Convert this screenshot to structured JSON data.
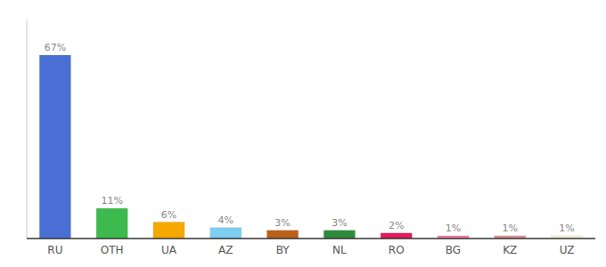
{
  "chart_data": {
    "type": "bar",
    "categories": [
      "RU",
      "OTH",
      "UA",
      "AZ",
      "BY",
      "NL",
      "RO",
      "BG",
      "KZ",
      "UZ"
    ],
    "values": [
      67,
      11,
      6,
      4,
      3,
      3,
      2,
      1,
      1,
      1
    ],
    "value_labels": [
      "67%",
      "11%",
      "6%",
      "4%",
      "3%",
      "3%",
      "2%",
      "1%",
      "1%",
      "1%"
    ],
    "colors": [
      "#4a6fd4",
      "#3dba4e",
      "#f5a800",
      "#7ecef0",
      "#b8601c",
      "#2e8b3c",
      "#e8195a",
      "#f080a0",
      "#e09090",
      "#f5f0d8"
    ],
    "ylim": [
      0,
      80
    ],
    "yticks": [],
    "data_labels": true,
    "tick_labels": "x",
    "grid": false
  }
}
